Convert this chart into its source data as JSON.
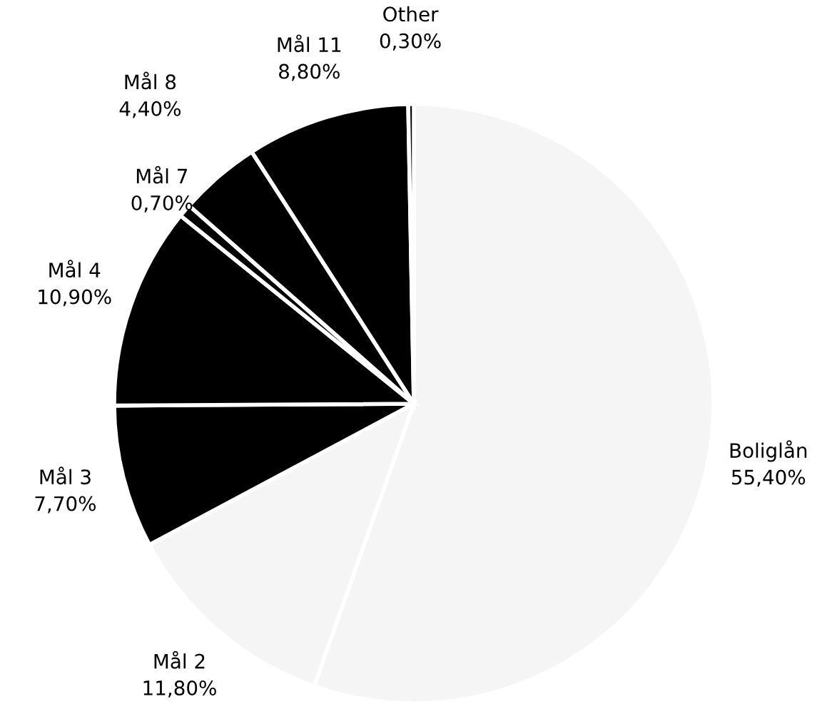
{
  "chart_data": {
    "type": "pie",
    "categories": [
      "Boliglån",
      "Mål 2",
      "Mål 3",
      "Mål 4",
      "Mål 7",
      "Mål 8",
      "Mål 11",
      "Other"
    ],
    "values": [
      55.4,
      11.8,
      7.7,
      10.9,
      0.7,
      4.4,
      8.8,
      0.3
    ],
    "colors": [
      "#f5f5f5",
      "#f5f5f5",
      "#000000",
      "#000000",
      "#000000",
      "#000000",
      "#000000",
      "#000000"
    ],
    "value_labels": [
      "55,40%",
      "11,80%",
      "7,70%",
      "10,90%",
      "0,70%",
      "4,40%",
      "8,80%",
      "0,30%"
    ]
  }
}
